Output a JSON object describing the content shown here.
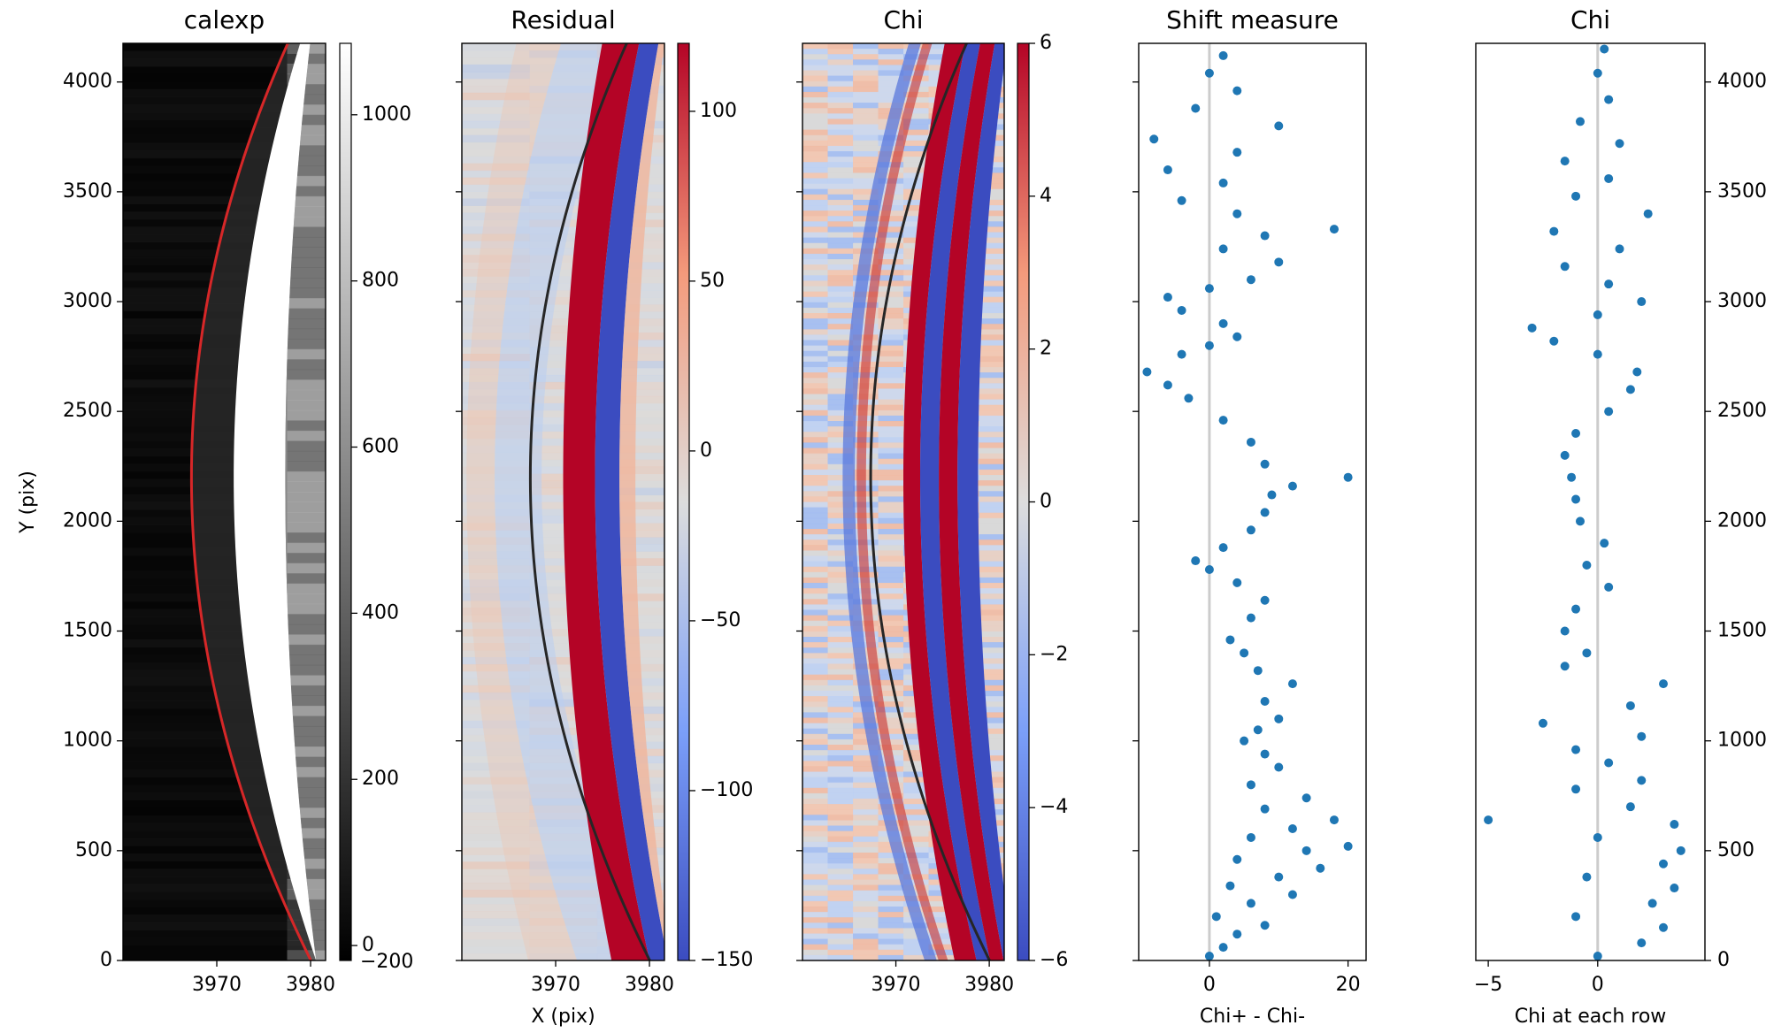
{
  "chart_data": [
    {
      "type": "image",
      "title": "calexp",
      "cmap": "gray",
      "curve_color": "#d62728",
      "xlim": [
        3960,
        3981.6
      ],
      "ylim": [
        0,
        4176
      ],
      "xticks": [
        3970,
        3980
      ],
      "yticks": [
        0,
        500,
        1000,
        1500,
        2000,
        2500,
        3000,
        3500,
        4000
      ],
      "yticklabels": "left",
      "ylabel": "Y (pix)",
      "colorbar": {
        "clim": [
          -18,
          1086
        ],
        "ticks": [
          0,
          200,
          400,
          600,
          800,
          1000
        ],
        "bottom_label": "−200"
      }
    },
    {
      "type": "image",
      "title": "Residual",
      "cmap": "coolwarm",
      "curve_color": "#262626",
      "xlim": [
        3960,
        3981.6
      ],
      "ylim": [
        0,
        4176
      ],
      "xticks": [
        3970,
        3980
      ],
      "yticks": [
        0,
        500,
        1000,
        1500,
        2000,
        2500,
        3000,
        3500,
        4000
      ],
      "yticklabels": "none",
      "xlabel": "X (pix)",
      "colorbar": {
        "clim": [
          -150,
          120
        ],
        "ticks": [
          {
            "value": -150,
            "label": "−150"
          },
          {
            "value": -100,
            "label": "−100"
          },
          {
            "value": -50,
            "label": "−50"
          },
          0,
          50,
          100
        ]
      }
    },
    {
      "type": "image",
      "title": "Chi",
      "cmap": "coolwarm",
      "curve_color": "#262626",
      "xlim": [
        3960,
        3981.6
      ],
      "ylim": [
        0,
        4176
      ],
      "xticks": [
        3970,
        3980
      ],
      "yticks": [
        0,
        500,
        1000,
        1500,
        2000,
        2500,
        3000,
        3500,
        4000
      ],
      "yticklabels": "none",
      "colorbar": {
        "clim": [
          -6,
          6
        ],
        "ticks": [
          {
            "value": -6,
            "label": "−6"
          },
          {
            "value": -4,
            "label": "−4"
          },
          {
            "value": -2,
            "label": "−2"
          },
          0,
          2,
          4,
          6
        ]
      }
    },
    {
      "type": "scatter",
      "title": "Shift measure",
      "xlabel": "Chi+ - Chi-",
      "color": "#1f77b4",
      "xlim": [
        -10.2,
        22.6
      ],
      "ylim": [
        0,
        4176
      ],
      "xticks": [
        0,
        20
      ],
      "yticks": [
        0,
        500,
        1000,
        1500,
        2000,
        2500,
        3000,
        3500,
        4000
      ],
      "yticklabels": "none",
      "vline": {
        "x": 0,
        "color": "#cccccc"
      },
      "x": [
        0,
        2,
        4,
        8,
        1,
        6,
        12,
        3,
        10,
        16,
        4,
        14,
        20,
        6,
        12,
        18,
        8,
        14,
        6,
        10,
        8,
        5,
        7,
        10,
        8,
        12,
        7,
        5,
        3,
        6,
        8,
        4,
        0,
        -2,
        2,
        6,
        8,
        9,
        12,
        20,
        8,
        6,
        2,
        -3,
        -6,
        -9,
        -4,
        0,
        4,
        2,
        -4,
        -6,
        0,
        6,
        10,
        2,
        8,
        18,
        4,
        -4,
        2,
        -6,
        4,
        -8,
        10,
        -2,
        4,
        0,
        2
      ],
      "y": [
        20,
        60,
        120,
        160,
        200,
        260,
        300,
        340,
        380,
        420,
        460,
        500,
        520,
        560,
        600,
        640,
        690,
        740,
        800,
        880,
        940,
        1000,
        1050,
        1100,
        1180,
        1260,
        1320,
        1400,
        1460,
        1560,
        1640,
        1720,
        1780,
        1820,
        1880,
        1960,
        2040,
        2120,
        2160,
        2200,
        2260,
        2360,
        2460,
        2560,
        2620,
        2680,
        2760,
        2800,
        2840,
        2900,
        2960,
        3020,
        3060,
        3100,
        3180,
        3240,
        3300,
        3330,
        3400,
        3460,
        3540,
        3600,
        3680,
        3740,
        3800,
        3880,
        3960,
        4040,
        4120
      ]
    },
    {
      "type": "scatter",
      "title": "Chi",
      "xlabel": "Chi at each row",
      "color": "#1f77b4",
      "xlim": [
        -5.57,
        4.9
      ],
      "ylim": [
        0,
        4176
      ],
      "xticks": [
        {
          "value": -5,
          "label": "−5"
        },
        0
      ],
      "yticks": [
        0,
        500,
        1000,
        1500,
        2000,
        2500,
        3000,
        3500,
        4000
      ],
      "yticklabels": "right",
      "vline": {
        "x": 0,
        "color": "#cccccc"
      },
      "x": [
        0,
        2,
        3,
        -1,
        2.5,
        3.5,
        -0.5,
        3,
        3.8,
        0,
        3.5,
        -5,
        1.5,
        -1,
        2,
        0.5,
        -1,
        2,
        -2.5,
        1.5,
        3,
        -1.5,
        -0.5,
        -1.5,
        -1,
        0.5,
        -0.5,
        0.3,
        -0.8,
        -1,
        -1.2,
        -1.5,
        -1,
        0.5,
        1.5,
        1.8,
        0,
        -2,
        -3,
        0,
        2,
        0.5,
        -1.5,
        1,
        -2,
        2.3,
        -1,
        0.5,
        -1.5,
        1,
        -0.8,
        0.5,
        0,
        0.3
      ],
      "y": [
        20,
        80,
        150,
        200,
        260,
        330,
        380,
        440,
        500,
        560,
        620,
        640,
        700,
        780,
        820,
        900,
        960,
        1020,
        1080,
        1160,
        1260,
        1340,
        1400,
        1500,
        1600,
        1700,
        1800,
        1900,
        2000,
        2100,
        2200,
        2300,
        2400,
        2500,
        2600,
        2680,
        2760,
        2820,
        2880,
        2940,
        3000,
        3080,
        3160,
        3240,
        3320,
        3400,
        3480,
        3560,
        3640,
        3720,
        3820,
        3920,
        4040,
        4150
      ]
    }
  ]
}
